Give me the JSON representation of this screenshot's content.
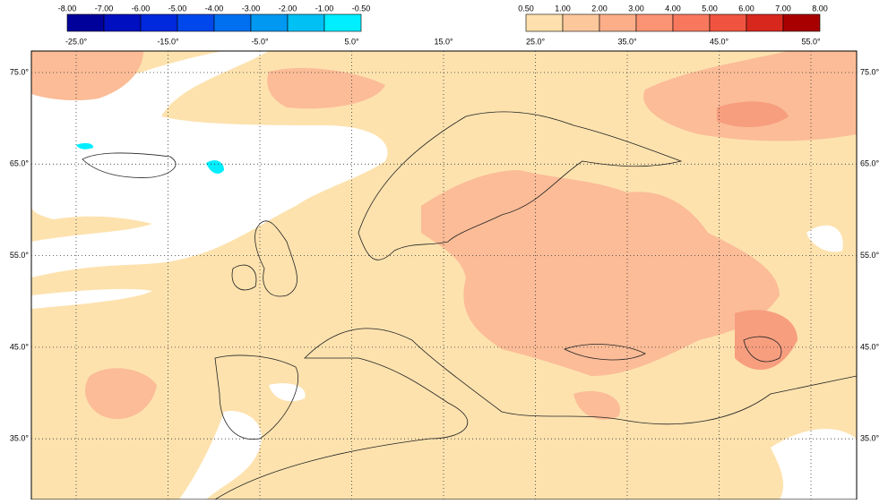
{
  "legend_negative": {
    "labels": [
      "-8.00",
      "-7.00",
      "-6.00",
      "-5.00",
      "-4.00",
      "-3.00",
      "-2.00",
      "-1.00",
      "-0.50"
    ],
    "colors": [
      "#00009a",
      "#0010c0",
      "#0028dc",
      "#0048ec",
      "#0070f0",
      "#0098f0",
      "#00c0f4",
      "#00eeff"
    ]
  },
  "legend_positive": {
    "labels": [
      "0.50",
      "1.00",
      "2.00",
      "3.00",
      "4.00",
      "5.00",
      "6.00",
      "7.00",
      "8.00"
    ],
    "colors": [
      "#fde0ad",
      "#fdc79c",
      "#fcae88",
      "#fb9474",
      "#f8785e",
      "#f05440",
      "#d8281e",
      "#a80000"
    ]
  },
  "longitude_labels": [
    "-25.0°",
    "-15.0°",
    "-5.0°",
    "5.0°",
    "15.0°",
    "25.0°",
    "35.0°",
    "45.0°",
    "55.0°"
  ],
  "latitude_labels": [
    "75.0°",
    "65.0°",
    "55.0°",
    "45.0°",
    "35.0°"
  ]
}
